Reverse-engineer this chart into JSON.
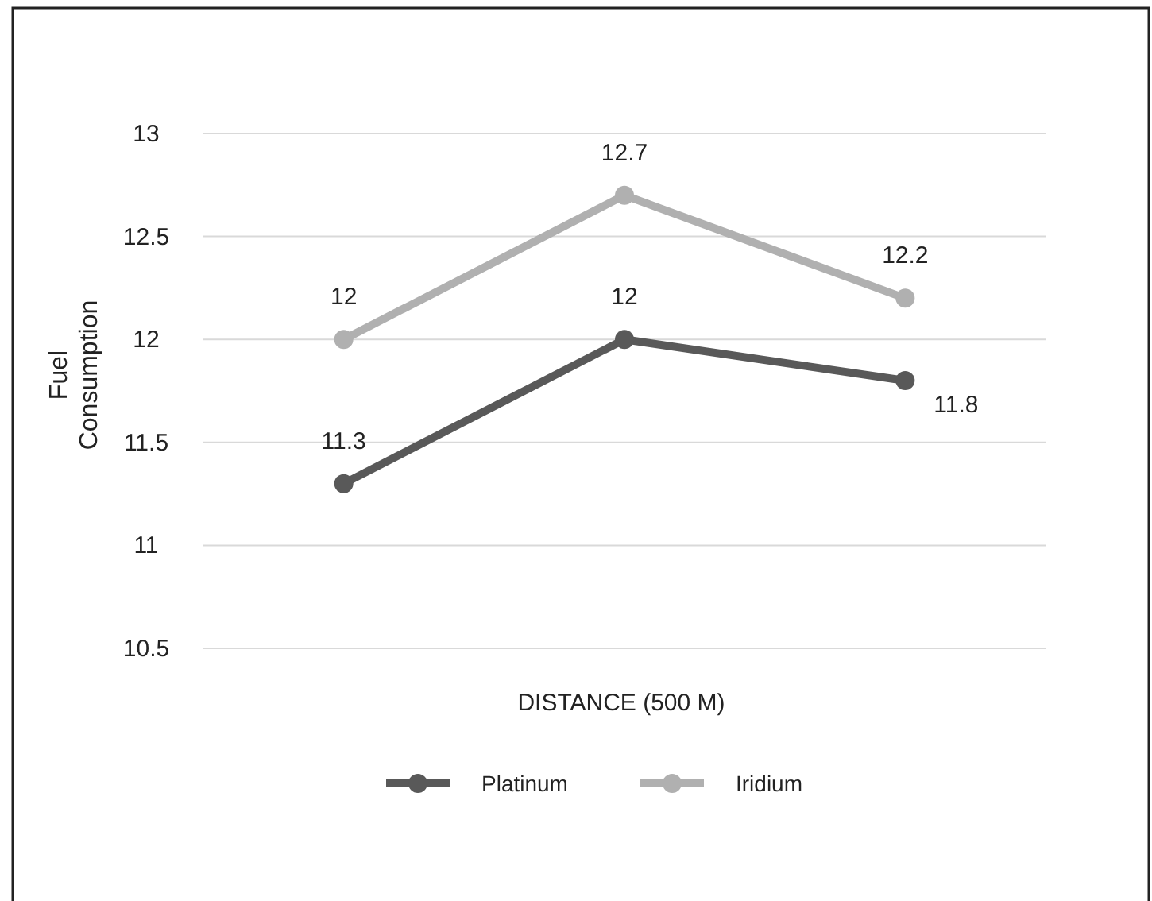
{
  "chart_data": {
    "type": "line",
    "xlabel": "DISTANCE (500 M)",
    "ylabel": "Fuel Consumption",
    "categories": [
      null,
      null,
      null
    ],
    "series": [
      {
        "name": "Platinum",
        "color": "#595959",
        "values": [
          11.3,
          12,
          11.8
        ]
      },
      {
        "name": "Iridium",
        "color": "#b0b0b0",
        "values": [
          12,
          12.7,
          12.2
        ]
      }
    ],
    "ylim": [
      10.5,
      13
    ],
    "yticks": [
      10.5,
      11,
      11.5,
      12,
      12.5,
      13
    ],
    "grid": "y",
    "legend": "bottom",
    "marker": "circle",
    "data_labels": true
  }
}
